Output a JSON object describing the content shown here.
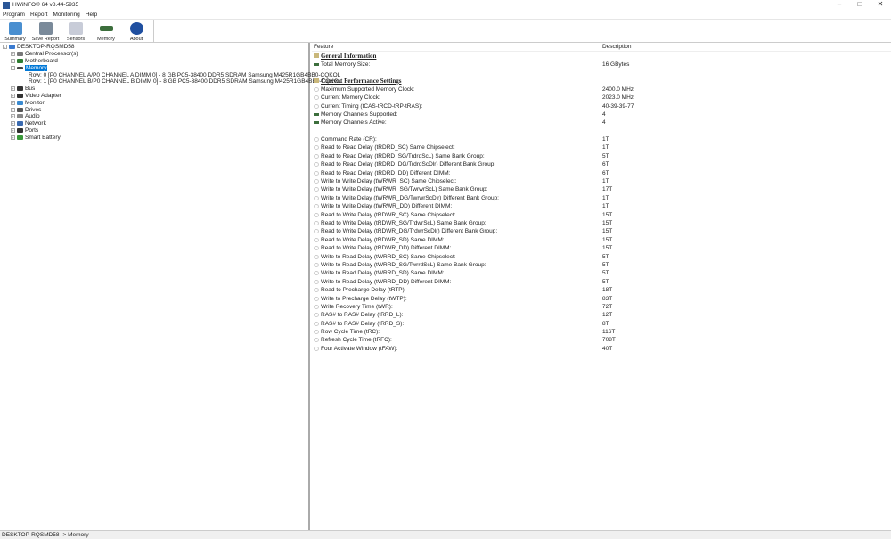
{
  "window": {
    "title": "HWiNFO® 64 v8.44-5935"
  },
  "menu": [
    "Program",
    "Report",
    "Monitoring",
    "Help"
  ],
  "toolbar": [
    {
      "label": "Summary",
      "icon": "monitor-icon",
      "color": "#4a8fd0"
    },
    {
      "label": "Save Report",
      "icon": "floppy-icon",
      "color": "#7a8a9a"
    },
    {
      "label": "Sensors",
      "icon": "thermometer-icon",
      "color": "#c8ccd8"
    },
    {
      "label": "Memory",
      "icon": "memory-icon",
      "color": "#3c6e3c"
    },
    {
      "label": "About",
      "icon": "info-icon",
      "color": "#1f4fa0"
    }
  ],
  "tree": {
    "root": "DESKTOP-RQSMD58",
    "items": [
      {
        "label": "Central Processor(s)",
        "icon": "cpu-icon",
        "color": "#777",
        "level": 1,
        "exp": "+"
      },
      {
        "label": "Motherboard",
        "icon": "motherboard-icon",
        "color": "#2e7d32",
        "level": 1,
        "exp": "+"
      },
      {
        "label": "Memory",
        "icon": "memory-icon",
        "color": "#444",
        "level": 1,
        "exp": "-",
        "selected": true
      },
      {
        "label": "Row: 0 [P0 CHANNEL A/P0 CHANNEL A DIMM 0] - 8 GB PC5-38400 DDR5 SDRAM Samsung M425R1GB4BB0-CQKOL",
        "icon": "memory-icon",
        "color": "#444",
        "level": 2
      },
      {
        "label": "Row: 1 [P0 CHANNEL B/P0 CHANNEL B DIMM 0] - 8 GB PC5-38400 DDR5 SDRAM Samsung M425R1GB4BB0-CQKOL",
        "icon": "memory-icon",
        "color": "#444",
        "level": 2
      },
      {
        "label": "Bus",
        "icon": "bus-icon",
        "color": "#333",
        "level": 1,
        "exp": "+"
      },
      {
        "label": "Video Adapter",
        "icon": "gpu-icon",
        "color": "#333",
        "level": 1,
        "exp": "+"
      },
      {
        "label": "Monitor",
        "icon": "monitor-icon",
        "color": "#3a8ad0",
        "level": 1,
        "exp": "+"
      },
      {
        "label": "Drives",
        "icon": "drive-icon",
        "color": "#555",
        "level": 1,
        "exp": "+"
      },
      {
        "label": "Audio",
        "icon": "audio-icon",
        "color": "#888",
        "level": 1,
        "exp": "+"
      },
      {
        "label": "Network",
        "icon": "network-icon",
        "color": "#3a6ab0",
        "level": 1,
        "exp": "+"
      },
      {
        "label": "Ports",
        "icon": "port-icon",
        "color": "#333",
        "level": 1,
        "exp": "+"
      },
      {
        "label": "Smart Battery",
        "icon": "battery-icon",
        "color": "#3a9a3a",
        "level": 1,
        "exp": "+"
      }
    ]
  },
  "details": {
    "columns": [
      "Feature",
      "Description"
    ],
    "rows": [
      {
        "type": "section",
        "f": "General Information"
      },
      {
        "type": "mem",
        "f": "Total Memory Size:",
        "d": "16 GBytes"
      },
      {
        "type": "blank"
      },
      {
        "type": "section",
        "f": "Current Performance Settings"
      },
      {
        "type": "clock",
        "f": "Maximum Supported Memory Clock:",
        "d": "2400.0 MHz"
      },
      {
        "type": "clock",
        "f": "Current Memory Clock:",
        "d": "2023.0 MHz"
      },
      {
        "type": "clock",
        "f": "Current Timing (tCAS-tRCD-tRP-tRAS):",
        "d": "40-39-39-77"
      },
      {
        "type": "mem",
        "f": "Memory Channels Supported:",
        "d": "4"
      },
      {
        "type": "mem",
        "f": "Memory Channels Active:",
        "d": "4"
      },
      {
        "type": "blank"
      },
      {
        "type": "clock",
        "f": "Command Rate (CR):",
        "d": "1T"
      },
      {
        "type": "clock",
        "f": "Read to Read Delay (tRDRD_SC) Same Chipselect:",
        "d": "1T"
      },
      {
        "type": "clock",
        "f": "Read to Read Delay (tRDRD_SG/TrdrdScL) Same Bank Group:",
        "d": "5T"
      },
      {
        "type": "clock",
        "f": "Read to Read Delay (tRDRD_DG/TrdrdScDlr) Different Bank Group:",
        "d": "6T"
      },
      {
        "type": "clock",
        "f": "Read to Read Delay (tRDRD_DD) Different DIMM:",
        "d": "6T"
      },
      {
        "type": "clock",
        "f": "Write to Write Delay (tWRWR_SC) Same Chipselect:",
        "d": "1T"
      },
      {
        "type": "clock",
        "f": "Write to Write Delay (tWRWR_SG/TwrwrScL) Same Bank Group:",
        "d": "17T"
      },
      {
        "type": "clock",
        "f": "Write to Write Delay (tWRWR_DG/TwrwrScDlr) Different Bank Group:",
        "d": "1T"
      },
      {
        "type": "clock",
        "f": "Write to Write Delay (tWRWR_DD) Different DIMM:",
        "d": "1T"
      },
      {
        "type": "clock",
        "f": "Read to Write Delay (tRDWR_SC) Same Chipselect:",
        "d": "15T"
      },
      {
        "type": "clock",
        "f": "Read to Write Delay (tRDWR_SG/TrdwrScL) Same Bank Group:",
        "d": "15T"
      },
      {
        "type": "clock",
        "f": "Read to Write Delay (tRDWR_DG/TrdwrScDlr) Different Bank Group:",
        "d": "15T"
      },
      {
        "type": "clock",
        "f": "Read to Write Delay (tRDWR_SD) Same DIMM:",
        "d": "15T"
      },
      {
        "type": "clock",
        "f": "Read to Write Delay (tRDWR_DD) Different DIMM:",
        "d": "15T"
      },
      {
        "type": "clock",
        "f": "Write to Read Delay (tWRRD_SC) Same Chipselect:",
        "d": "5T"
      },
      {
        "type": "clock",
        "f": "Write to Read Delay (tWRRD_SG/TwrrdScL) Same Bank Group:",
        "d": "5T"
      },
      {
        "type": "clock",
        "f": "Write to Read Delay (tWRRD_SD) Same DIMM:",
        "d": "5T"
      },
      {
        "type": "clock",
        "f": "Write to Read Delay (tWRRD_DD) Different DIMM:",
        "d": "5T"
      },
      {
        "type": "clock",
        "f": "Read to Precharge Delay (tRTP):",
        "d": "18T"
      },
      {
        "type": "clock",
        "f": "Write to Precharge Delay (tWTP):",
        "d": "83T"
      },
      {
        "type": "clock",
        "f": "Write Recovery Time (tWR):",
        "d": "72T"
      },
      {
        "type": "clock",
        "f": "RAS# to RAS# Delay (tRRD_L):",
        "d": "12T"
      },
      {
        "type": "clock",
        "f": "RAS# to RAS# Delay (tRRD_S):",
        "d": "8T"
      },
      {
        "type": "clock",
        "f": "Row Cycle Time (tRC):",
        "d": "116T"
      },
      {
        "type": "clock",
        "f": "Refresh Cycle Time (tRFC):",
        "d": "708T"
      },
      {
        "type": "clock",
        "f": "Four Activate Window (tFAW):",
        "d": "40T"
      }
    ]
  },
  "status": "DESKTOP-RQSMD58 -> Memory"
}
